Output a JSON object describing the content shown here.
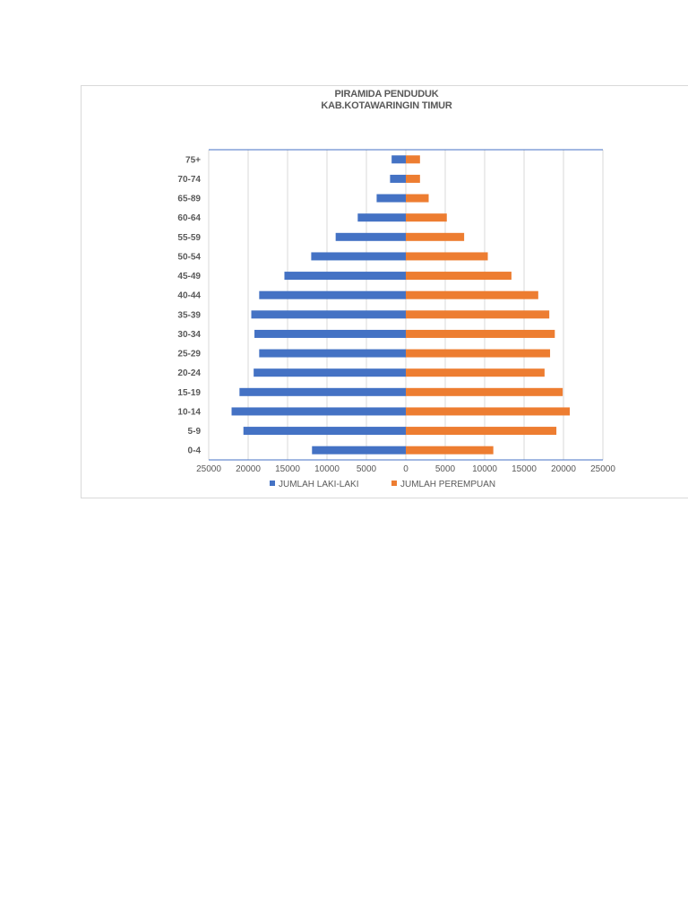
{
  "chart_data": {
    "type": "bar",
    "orientation": "horizontal",
    "layout": "population-pyramid",
    "title": "PIRAMIDA PENDUDUK",
    "subtitle": "KAB.KOTAWARINGIN TIMUR",
    "categories": [
      "0-4",
      "5-9",
      "10-14",
      "15-19",
      "20-24",
      "25-29",
      "30-34",
      "35-39",
      "40-44",
      "45-49",
      "50-54",
      "55-59",
      "60-64",
      "65-89",
      "70-74",
      "75+"
    ],
    "series": [
      {
        "name": "JUMLAH LAKI-LAKI",
        "side": "left",
        "color": "#4472c4",
        "values": [
          11900,
          20600,
          22100,
          21100,
          19300,
          18600,
          19200,
          19600,
          18600,
          15400,
          12000,
          8900,
          6100,
          3700,
          2000,
          1800
        ]
      },
      {
        "name": "JUMLAH PEREMPUAN",
        "side": "right",
        "color": "#ed7d31",
        "values": [
          11100,
          19100,
          20800,
          19900,
          17600,
          18300,
          18900,
          18200,
          16800,
          13400,
          10400,
          7400,
          5200,
          2900,
          1800,
          1800
        ]
      }
    ],
    "xlim": [
      -25000,
      25000
    ],
    "x_ticks": [
      -25000,
      -20000,
      -15000,
      -10000,
      -5000,
      0,
      5000,
      10000,
      15000,
      20000,
      25000
    ],
    "x_tick_labels": [
      "25000",
      "20000",
      "15000",
      "10000",
      "5000",
      "0",
      "5000",
      "10000",
      "15000",
      "20000",
      "25000"
    ],
    "grid": "vertical",
    "legend_position": "bottom",
    "colors": {
      "gridline": "#d9d9d9",
      "axis_line": "#4472c4",
      "text": "#595959"
    }
  }
}
